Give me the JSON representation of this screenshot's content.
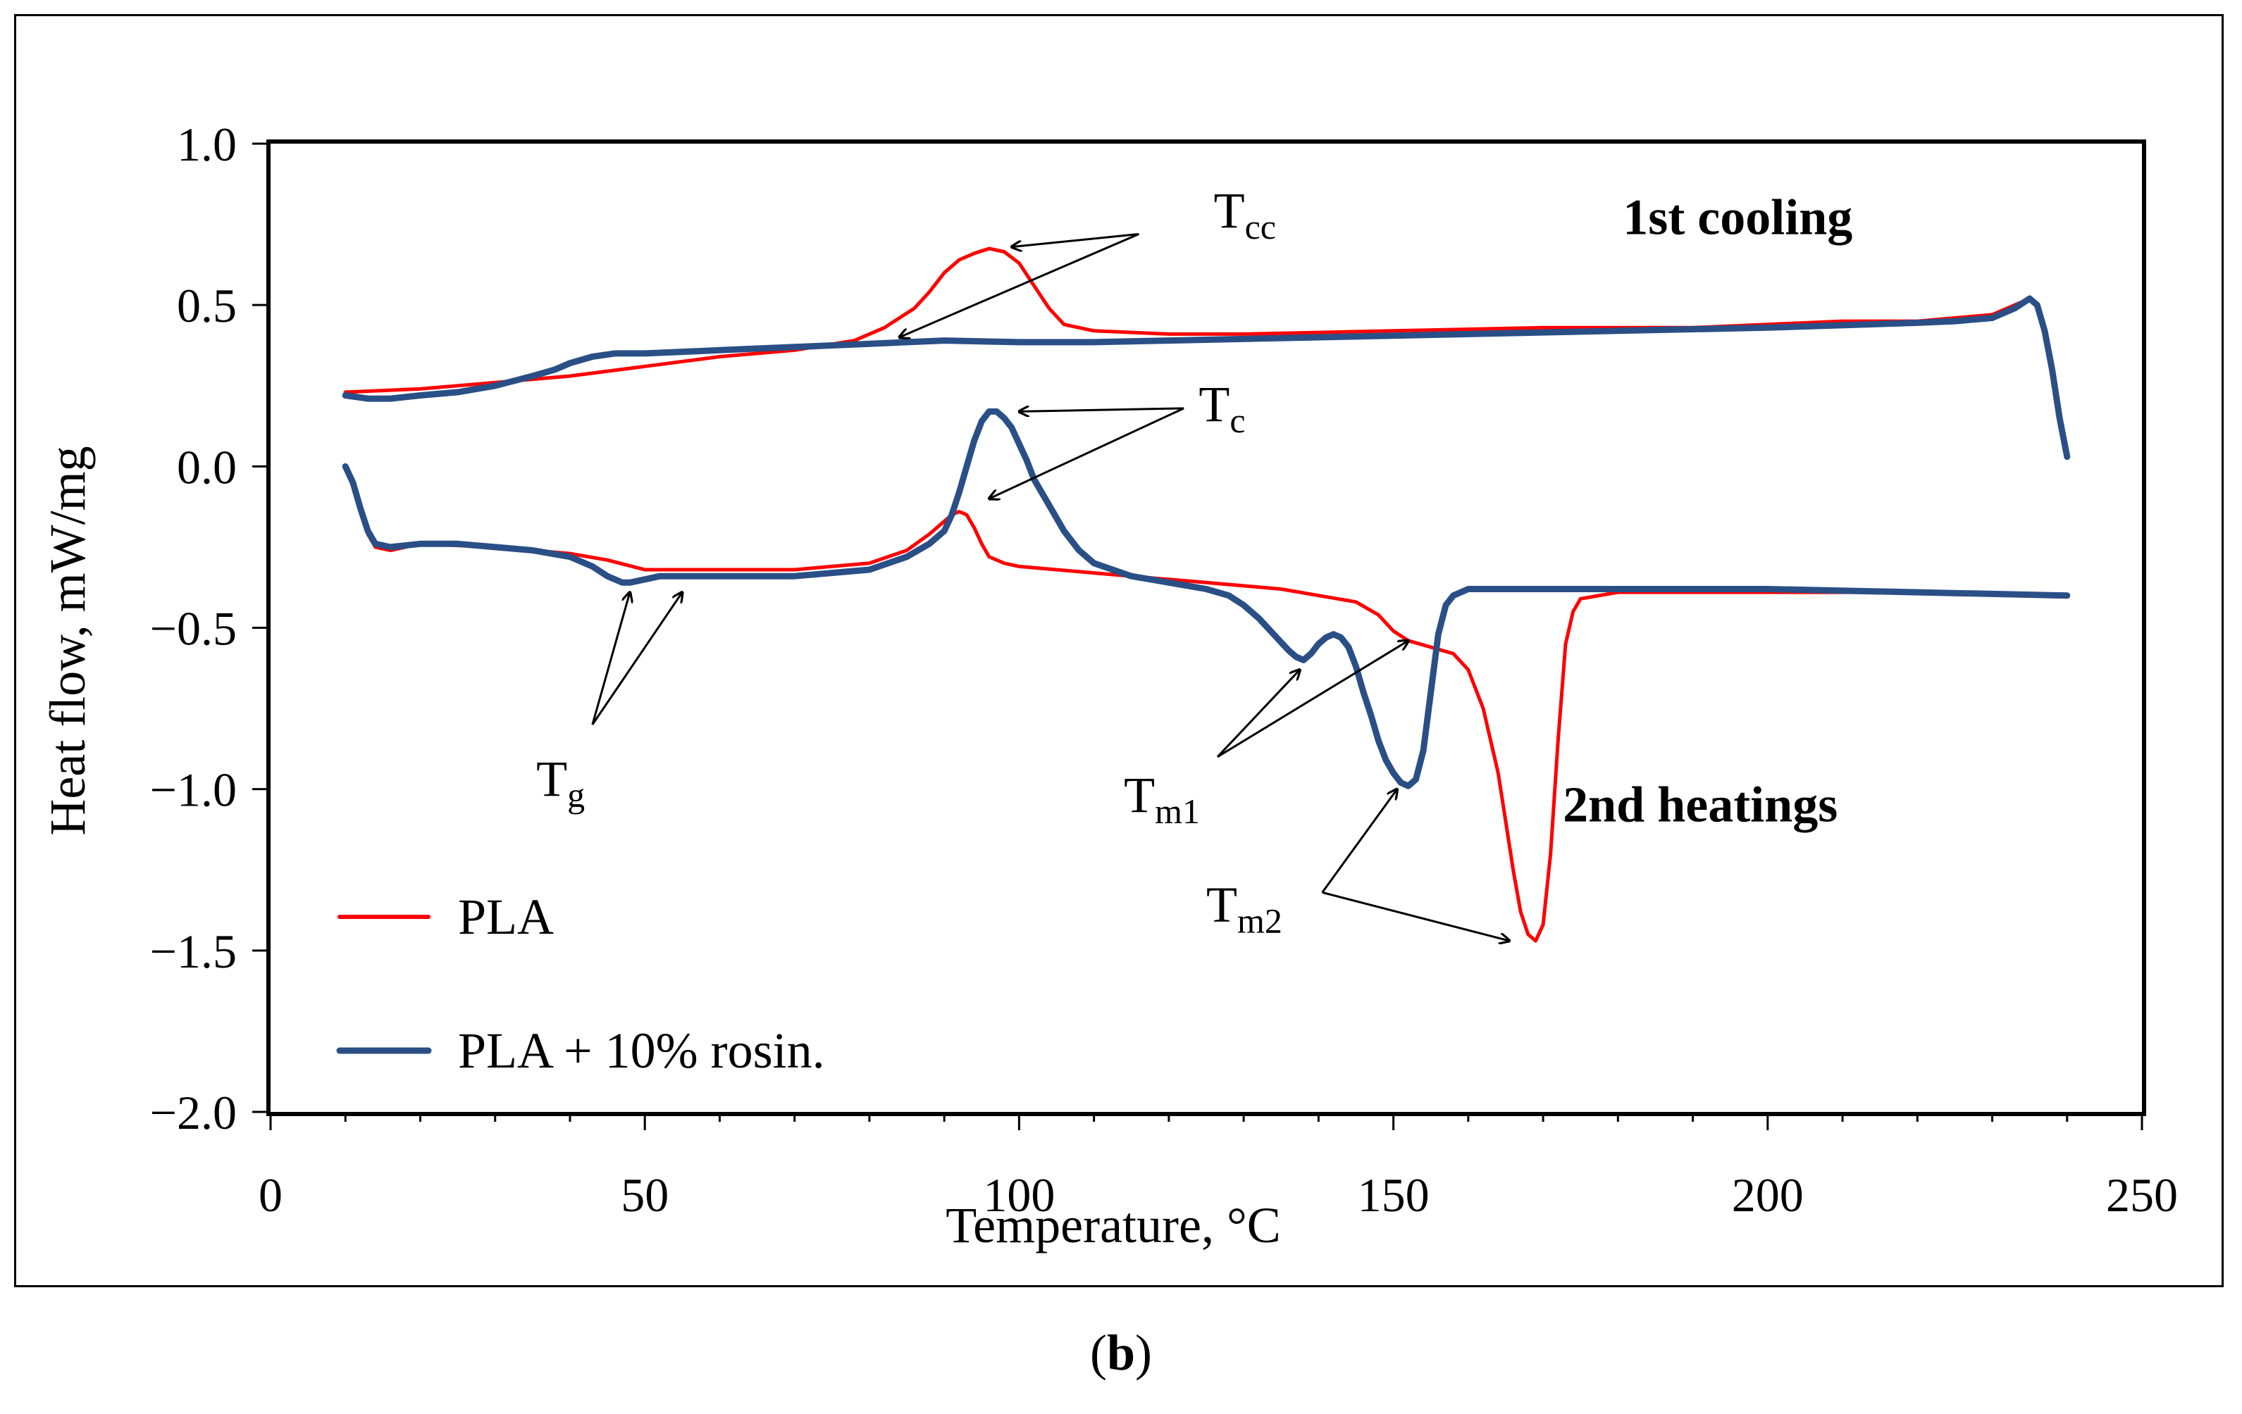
{
  "caption": {
    "open": "(",
    "letter": "b",
    "close": ")"
  },
  "colors": {
    "pla": "#ff0000",
    "rosin": "#2a4f86",
    "text": "#000000"
  },
  "chart_data": {
    "type": "line",
    "title": "",
    "xlabel": "Temperature, °C",
    "ylabel": "Heat flow, mW/mg",
    "xlim": [
      0,
      250
    ],
    "ylim": [
      -2.0,
      1.0
    ],
    "x_ticks": [
      0,
      50,
      100,
      150,
      200,
      250
    ],
    "x_tick_labels": [
      "0",
      "50",
      "100",
      "150",
      "200",
      "250"
    ],
    "y_ticks": [
      1.0,
      0.5,
      0.0,
      -0.5,
      -1.0,
      -1.5,
      -2.0
    ],
    "y_tick_labels": [
      "1.0",
      "0.5",
      "0.0",
      "−0.5",
      "−1.0",
      "−1.5",
      "−2.0"
    ],
    "x_minor_step": 10,
    "grid": false,
    "legend": {
      "placement": "bottom-left",
      "entries": [
        {
          "label": "PLA",
          "color": "#ff0000",
          "series": "PLA"
        },
        {
          "label": "PLA + 10% rosin.",
          "color": "#2a4f86",
          "series": "PLA + 10% rosin."
        }
      ]
    },
    "region_labels": [
      {
        "text": "1st cooling",
        "x": 196,
        "y": 0.72
      },
      {
        "text": "2nd heatings",
        "x": 191,
        "y": -1.1
      }
    ],
    "annotations": [
      {
        "main": "T",
        "sub": "cc",
        "text_at": [
          126,
          0.74
        ],
        "arrows": [
          {
            "from": [
              116,
              0.72
            ],
            "to": [
              99,
              0.68
            ]
          },
          {
            "from": [
              116,
              0.72
            ],
            "to": [
              84,
              0.4
            ]
          }
        ]
      },
      {
        "main": "T",
        "sub": "c",
        "text_at": [
          124,
          0.14
        ],
        "arrows": [
          {
            "from": [
              122,
              0.18
            ],
            "to": [
              100,
              0.17
            ]
          },
          {
            "from": [
              122,
              0.18
            ],
            "to": [
              96,
              -0.1
            ]
          }
        ]
      },
      {
        "main": "T",
        "sub": "g",
        "text_at": [
          35.5,
          -1.02
        ],
        "arrows": [
          {
            "from": [
              43,
              -0.8
            ],
            "to": [
              48,
              -0.39
            ]
          },
          {
            "from": [
              43,
              -0.8
            ],
            "to": [
              55,
              -0.39
            ]
          }
        ]
      },
      {
        "main": "T",
        "sub": "m1",
        "text_at": [
          114,
          -1.07
        ],
        "arrows": [
          {
            "from": [
              126.5,
              -0.9
            ],
            "to": [
              137.5,
              -0.63
            ]
          },
          {
            "from": [
              126.5,
              -0.9
            ],
            "to": [
              152,
              -0.54
            ]
          }
        ]
      },
      {
        "main": "T",
        "sub": "m2",
        "text_at": [
          125,
          -1.41
        ],
        "arrows": [
          {
            "from": [
              140.5,
              -1.32
            ],
            "to": [
              150.5,
              -1.0
            ]
          },
          {
            "from": [
              140.5,
              -1.32
            ],
            "to": [
              165.5,
              -1.47
            ]
          }
        ]
      }
    ],
    "series": [
      {
        "name": "PLA",
        "color": "#ff0000",
        "segment": "1st cooling",
        "x": [
          10,
          20,
          30,
          40,
          50,
          60,
          70,
          78,
          82,
          86,
          88,
          90,
          92,
          94,
          96,
          98,
          100,
          102,
          104,
          106,
          110,
          120,
          130,
          150,
          170,
          190,
          200,
          210,
          220,
          225,
          230,
          233,
          235,
          236,
          237,
          238,
          239,
          240
        ],
        "y": [
          0.23,
          0.24,
          0.26,
          0.28,
          0.31,
          0.34,
          0.36,
          0.39,
          0.43,
          0.49,
          0.54,
          0.6,
          0.64,
          0.66,
          0.675,
          0.665,
          0.63,
          0.56,
          0.49,
          0.44,
          0.42,
          0.41,
          0.41,
          0.42,
          0.43,
          0.43,
          0.44,
          0.45,
          0.45,
          0.46,
          0.47,
          0.5,
          0.52,
          0.5,
          0.42,
          0.3,
          0.15,
          0.03
        ]
      },
      {
        "name": "PLA",
        "color": "#ff0000",
        "segment": "2nd heating",
        "x": [
          10,
          11,
          12,
          13,
          14,
          16,
          20,
          30,
          40,
          45,
          50,
          60,
          70,
          80,
          85,
          88,
          90,
          91,
          92,
          93,
          94,
          95,
          96,
          98,
          100,
          110,
          120,
          125,
          130,
          135,
          140,
          145,
          148,
          150,
          152,
          155,
          158,
          160,
          162,
          164,
          165,
          166,
          167,
          168,
          169,
          170,
          171,
          172,
          173,
          174,
          175,
          180,
          200,
          220,
          240
        ],
        "y": [
          -0.0,
          -0.05,
          -0.13,
          -0.21,
          -0.25,
          -0.26,
          -0.24,
          -0.25,
          -0.27,
          -0.29,
          -0.32,
          -0.32,
          -0.32,
          -0.3,
          -0.26,
          -0.21,
          -0.17,
          -0.15,
          -0.14,
          -0.15,
          -0.19,
          -0.24,
          -0.28,
          -0.3,
          -0.31,
          -0.33,
          -0.35,
          -0.36,
          -0.37,
          -0.38,
          -0.4,
          -0.42,
          -0.46,
          -0.51,
          -0.54,
          -0.56,
          -0.58,
          -0.63,
          -0.75,
          -0.95,
          -1.1,
          -1.25,
          -1.38,
          -1.45,
          -1.47,
          -1.42,
          -1.2,
          -0.85,
          -0.55,
          -0.45,
          -0.41,
          -0.39,
          -0.39,
          -0.39,
          -0.4
        ]
      },
      {
        "name": "PLA + 10% rosin.",
        "color": "#2a4f86",
        "segment": "1st cooling",
        "x": [
          10,
          13,
          16,
          20,
          25,
          30,
          35,
          38,
          40,
          43,
          46,
          50,
          55,
          60,
          70,
          80,
          90,
          100,
          110,
          120,
          140,
          160,
          180,
          200,
          220,
          225,
          230,
          233,
          235,
          236,
          237,
          238,
          239,
          240
        ],
        "y": [
          0.22,
          0.21,
          0.21,
          0.22,
          0.23,
          0.25,
          0.28,
          0.3,
          0.32,
          0.34,
          0.35,
          0.35,
          0.355,
          0.36,
          0.37,
          0.38,
          0.39,
          0.385,
          0.385,
          0.39,
          0.4,
          0.41,
          0.42,
          0.43,
          0.445,
          0.45,
          0.46,
          0.49,
          0.52,
          0.5,
          0.42,
          0.3,
          0.15,
          0.03
        ]
      },
      {
        "name": "PLA + 10% rosin.",
        "color": "#2a4f86",
        "segment": "2nd heating",
        "x": [
          10,
          11,
          12,
          13,
          14,
          16,
          20,
          25,
          30,
          35,
          40,
          43,
          45,
          47,
          48,
          50,
          52,
          55,
          60,
          70,
          80,
          85,
          88,
          90,
          91,
          92,
          93,
          94,
          95,
          96,
          97,
          98,
          99,
          100,
          101,
          102,
          104,
          106,
          108,
          110,
          115,
          120,
          125,
          128,
          130,
          132,
          134,
          136,
          137,
          138,
          139,
          140,
          141,
          142,
          143,
          144,
          145,
          146,
          147,
          148,
          149,
          150,
          151,
          152,
          153,
          154,
          155,
          156,
          157,
          158,
          160,
          165,
          180,
          200,
          220,
          240
        ],
        "y": [
          -0.0,
          -0.05,
          -0.13,
          -0.2,
          -0.24,
          -0.25,
          -0.24,
          -0.24,
          -0.25,
          -0.26,
          -0.28,
          -0.31,
          -0.34,
          -0.36,
          -0.36,
          -0.35,
          -0.34,
          -0.34,
          -0.34,
          -0.34,
          -0.32,
          -0.28,
          -0.24,
          -0.2,
          -0.15,
          -0.08,
          0.0,
          0.08,
          0.14,
          0.17,
          0.17,
          0.15,
          0.12,
          0.07,
          0.02,
          -0.04,
          -0.12,
          -0.2,
          -0.26,
          -0.3,
          -0.34,
          -0.36,
          -0.38,
          -0.4,
          -0.43,
          -0.47,
          -0.52,
          -0.57,
          -0.59,
          -0.6,
          -0.58,
          -0.55,
          -0.53,
          -0.52,
          -0.53,
          -0.56,
          -0.62,
          -0.7,
          -0.77,
          -0.85,
          -0.91,
          -0.95,
          -0.98,
          -0.99,
          -0.97,
          -0.88,
          -0.7,
          -0.52,
          -0.43,
          -0.4,
          -0.38,
          -0.38,
          -0.38,
          -0.38,
          -0.39,
          -0.4
        ]
      }
    ]
  }
}
